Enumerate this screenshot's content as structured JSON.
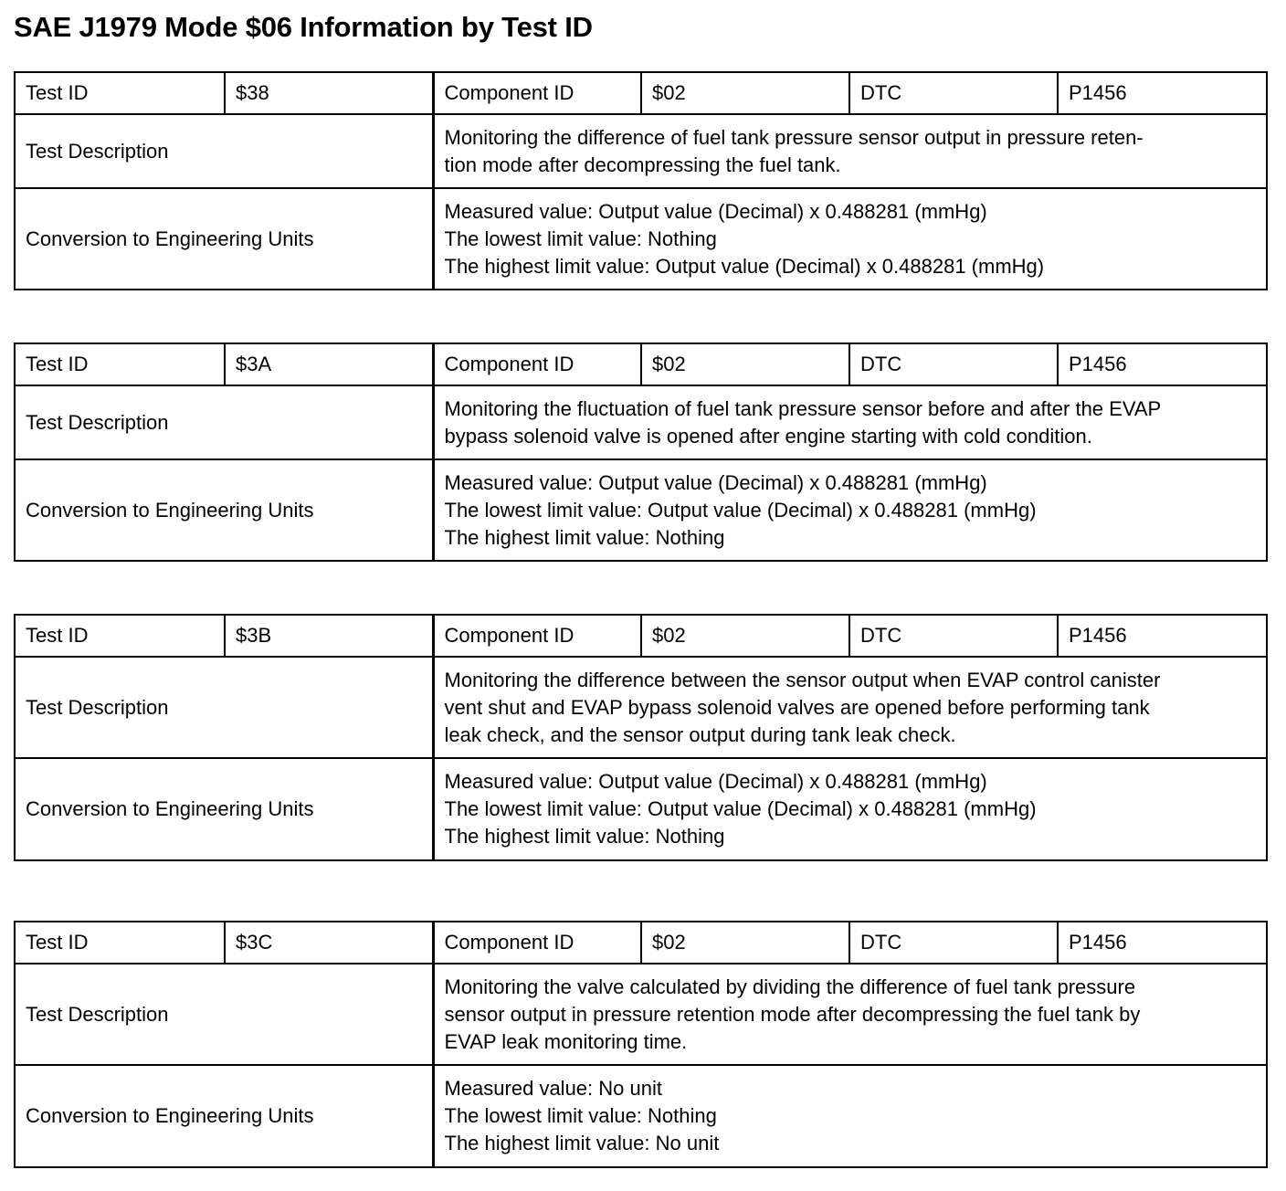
{
  "title": "SAE J1979 Mode $06 Information by Test ID",
  "labels": {
    "test_id": "Test ID",
    "component_id": "Component ID",
    "dtc": "DTC",
    "test_description": "Test Description",
    "conversion": "Conversion to Engineering Units"
  },
  "tests": [
    {
      "test_id": "$38",
      "component_id": "$02",
      "dtc": "P1456",
      "description": [
        "Monitoring the difference of fuel tank pressure sensor output in pressure reten-",
        "tion mode after decompressing the fuel tank."
      ],
      "conversion": [
        "Measured value: Output value (Decimal) x 0.488281 (mmHg)",
        "The lowest limit value: Nothing",
        "The highest limit value: Output value (Decimal) x 0.488281 (mmHg)"
      ]
    },
    {
      "test_id": "$3A",
      "component_id": "$02",
      "dtc": "P1456",
      "description": [
        "Monitoring the fluctuation of fuel tank pressure sensor before and after the EVAP",
        "bypass solenoid valve is opened after engine starting with cold condition."
      ],
      "conversion": [
        "Measured value: Output value (Decimal) x 0.488281 (mmHg)",
        "The lowest limit value: Output value (Decimal) x 0.488281 (mmHg)",
        "The highest limit value: Nothing"
      ]
    },
    {
      "test_id": "$3B",
      "component_id": "$02",
      "dtc": "P1456",
      "description": [
        "Monitoring the difference between the sensor output when EVAP control canister",
        "vent shut and EVAP bypass solenoid valves are opened before performing tank",
        "leak check, and the sensor output during tank leak check."
      ],
      "conversion": [
        "Measured value: Output value (Decimal) x 0.488281 (mmHg)",
        "The lowest limit value: Output value (Decimal) x 0.488281 (mmHg)",
        "The highest limit value: Nothing"
      ]
    },
    {
      "test_id": "$3C",
      "component_id": "$02",
      "dtc": "P1456",
      "description": [
        "Monitoring the valve calculated by dividing the difference of fuel tank pressure",
        "sensor output in pressure retention mode after decompressing the fuel tank by",
        "EVAP leak monitoring time."
      ],
      "conversion": [
        "Measured value: No unit",
        "The lowest limit value: Nothing",
        "The highest limit value: No unit"
      ]
    }
  ]
}
